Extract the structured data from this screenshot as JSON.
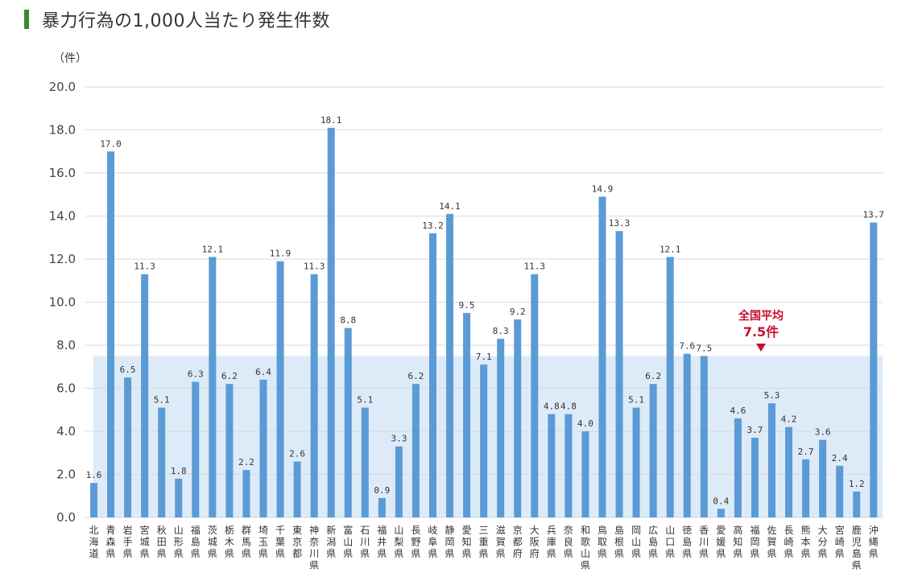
{
  "title": "暴力行為の1,000人当たり発生件数",
  "unit_label": "（件）",
  "average": {
    "label": "全国平均",
    "value_label": "7.5件",
    "value": 7.5
  },
  "colors": {
    "bar": "#5b9bd5",
    "average_band": "#dcebf7",
    "grid": "#d9d9d9",
    "average_text": "#c8102e",
    "title_marker": "#3a8a2e"
  },
  "chart_data": {
    "type": "bar",
    "title": "暴力行為の1,000人当たり発生件数",
    "ylabel": "（件）",
    "ylim": [
      0,
      20
    ],
    "yticks": [
      "0.0",
      "2.0",
      "4.0",
      "6.0",
      "8.0",
      "10.0",
      "12.0",
      "14.0",
      "16.0",
      "18.0",
      "20.0"
    ],
    "grid": true,
    "categories": [
      "北海道",
      "青森県",
      "岩手県",
      "宮城県",
      "秋田県",
      "山形県",
      "福島県",
      "茨城県",
      "栃木県",
      "群馬県",
      "埼玉県",
      "千葉県",
      "東京都",
      "神奈川県",
      "新潟県",
      "富山県",
      "石川県",
      "福井県",
      "山梨県",
      "長野県",
      "岐阜県",
      "静岡県",
      "愛知県",
      "三重県",
      "滋賀県",
      "京都府",
      "大阪府",
      "兵庫県",
      "奈良県",
      "和歌山県",
      "鳥取県",
      "島根県",
      "岡山県",
      "広島県",
      "山口県",
      "徳島県",
      "香川県",
      "愛媛県",
      "高知県",
      "福岡県",
      "佐賀県",
      "長崎県",
      "熊本県",
      "大分県",
      "宮崎県",
      "鹿児島県",
      "沖縄県"
    ],
    "values": [
      1.6,
      17.0,
      6.5,
      11.3,
      5.1,
      1.8,
      6.3,
      12.1,
      6.2,
      2.2,
      6.4,
      11.9,
      2.6,
      11.3,
      18.1,
      8.8,
      5.1,
      0.9,
      3.3,
      6.2,
      13.2,
      14.1,
      9.5,
      7.1,
      8.3,
      9.2,
      11.3,
      4.8,
      4.8,
      4.0,
      14.9,
      13.3,
      5.1,
      6.2,
      12.1,
      7.6,
      7.5,
      0.4,
      4.6,
      3.7,
      5.3,
      4.2,
      2.7,
      3.6,
      2.4,
      1.2,
      13.7
    ],
    "value_labels": [
      "1.6",
      "17.0",
      "6.5",
      "11.3",
      "5.1",
      "1.8",
      "6.3",
      "12.1",
      "6.2",
      "2.2",
      "6.4",
      "11.9",
      "2.6",
      "11.3",
      "18.1",
      "8.8",
      "5.1",
      "0.9",
      "3.3",
      "6.2",
      "13.2",
      "14.1",
      "9.5",
      "7.1",
      "8.3",
      "9.2",
      "11.3",
      "4.8",
      "4.8",
      "4.0",
      "14.9",
      "13.3",
      "5.1",
      "6.2",
      "12.1",
      "7.6",
      "7.5",
      "0.4",
      "4.6",
      "3.7",
      "5.3",
      "4.2",
      "2.7",
      "3.6",
      "2.4",
      "1.2",
      "13.7"
    ]
  }
}
